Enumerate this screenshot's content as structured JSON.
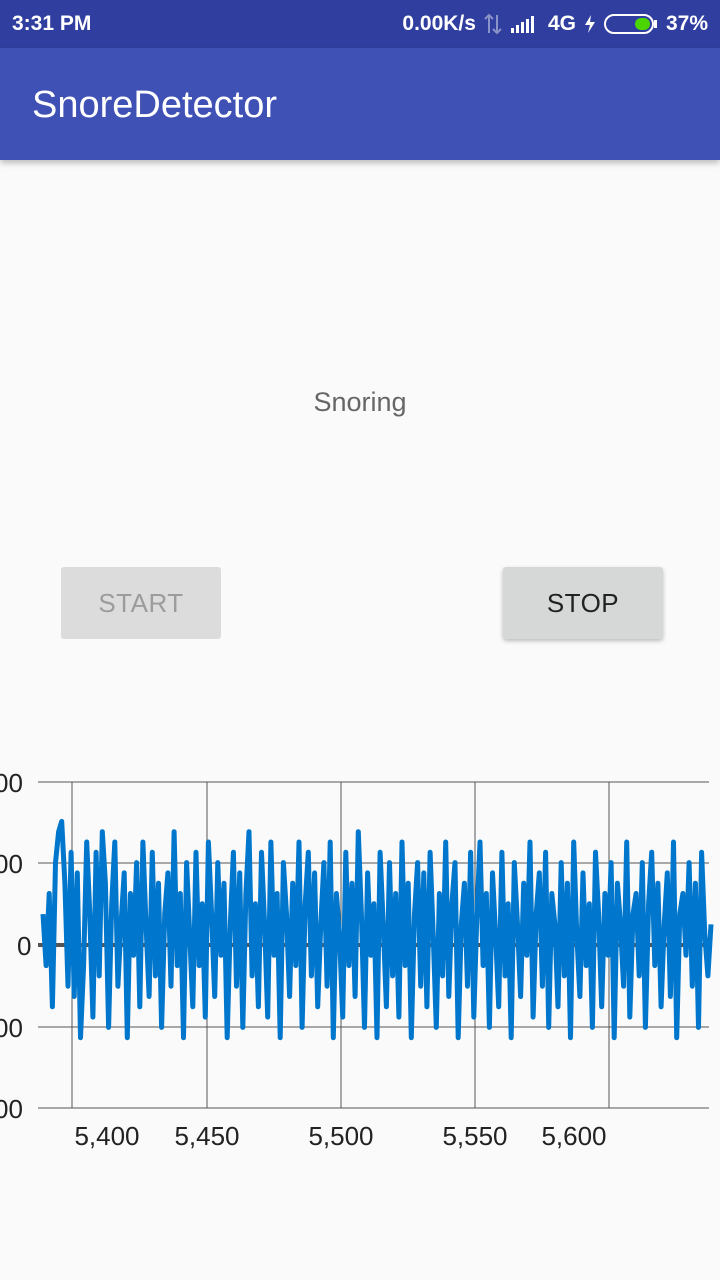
{
  "status_bar": {
    "time": "3:31 PM",
    "speed": "0.00K/s",
    "network": "4G",
    "battery": "37%"
  },
  "app_bar": {
    "title": "SnoreDetector"
  },
  "status_text": "Snoring",
  "buttons": {
    "start": "START",
    "stop": "STOP"
  },
  "chart_data": {
    "type": "line",
    "xlabel": "",
    "ylabel": "",
    "x_ticks": [
      "5,400",
      "5,450",
      "5,500",
      "5,550",
      "5,600"
    ],
    "y_ticks": [
      "00",
      "00",
      "0",
      "00",
      "00"
    ],
    "series": [
      {
        "color": "#0077cc",
        "x_start": 5372,
        "x_end": 5634,
        "values": [
          0.3,
          -0.2,
          0.5,
          -0.6,
          0.8,
          1.1,
          1.2,
          0.6,
          -0.4,
          0.9,
          -0.5,
          0.7,
          -0.9,
          -0.2,
          1.0,
          0.3,
          -0.7,
          0.9,
          -0.3,
          1.1,
          0.6,
          -0.8,
          0.4,
          1.0,
          -0.4,
          0.2,
          0.7,
          -0.9,
          0.5,
          -0.1,
          0.8,
          -0.6,
          1.0,
          0.2,
          -0.5,
          0.9,
          -0.3,
          0.6,
          -0.8,
          0.3,
          0.7,
          -0.4,
          1.1,
          -0.2,
          0.5,
          -0.9,
          0.8,
          0.1,
          -0.6,
          0.9,
          -0.2,
          0.4,
          -0.7,
          1.0,
          0.3,
          -0.5,
          0.8,
          -0.1,
          0.6,
          -0.9,
          0.2,
          0.9,
          -0.4,
          0.7,
          -0.8,
          0.5,
          1.1,
          -0.3,
          0.4,
          -0.6,
          0.9,
          0.2,
          -0.7,
          1.0,
          -0.1,
          0.5,
          -0.9,
          0.8,
          0.3,
          -0.5,
          0.6,
          -0.2,
          1.0,
          -0.8,
          0.4,
          0.9,
          -0.3,
          0.7,
          -0.6,
          0.2,
          0.8,
          -0.4,
          1.0,
          -0.9,
          0.5,
          0.1,
          -0.7,
          0.9,
          -0.2,
          0.6,
          -0.5,
          1.1,
          0.3,
          -0.8,
          0.7,
          -0.1,
          0.4,
          -0.9,
          0.9,
          0.2,
          -0.6,
          0.8,
          -0.3,
          0.5,
          -0.7,
          1.0,
          -0.2,
          0.6,
          -0.9,
          0.3,
          0.8,
          -0.4,
          0.7,
          -0.6,
          0.9,
          0.1,
          -0.8,
          0.5,
          -0.3,
          1.0,
          -0.5,
          0.4,
          0.8,
          -0.9,
          0.2,
          0.6,
          -0.4,
          0.9,
          -0.7,
          0.3,
          1.0,
          -0.2,
          0.5,
          -0.8,
          0.7,
          0.1,
          -0.6,
          0.9,
          -0.3,
          0.4,
          -0.9,
          0.8,
          0.2,
          -0.5,
          0.6,
          -0.1,
          1.0,
          -0.7,
          0.3,
          0.7,
          -0.4,
          0.9,
          -0.8,
          0.5,
          0.2,
          -0.6,
          0.8,
          -0.3,
          0.6,
          -0.9,
          1.0,
          0.1,
          -0.5,
          0.7,
          -0.2,
          0.4,
          -0.8,
          0.9,
          0.3,
          -0.6,
          0.5,
          -0.1,
          0.8,
          -0.9,
          0.6,
          0.2,
          -0.4,
          1.0,
          -0.7,
          0.3,
          0.5,
          -0.3,
          0.8,
          -0.8,
          0.4,
          0.9,
          -0.2,
          0.6,
          -0.6,
          0.2,
          0.7,
          -0.5,
          1.0,
          -0.9,
          0.3,
          0.5,
          -0.1,
          0.8,
          -0.4,
          0.6,
          -0.8,
          0.9,
          0.1,
          -0.3,
          0.2
        ]
      }
    ]
  }
}
